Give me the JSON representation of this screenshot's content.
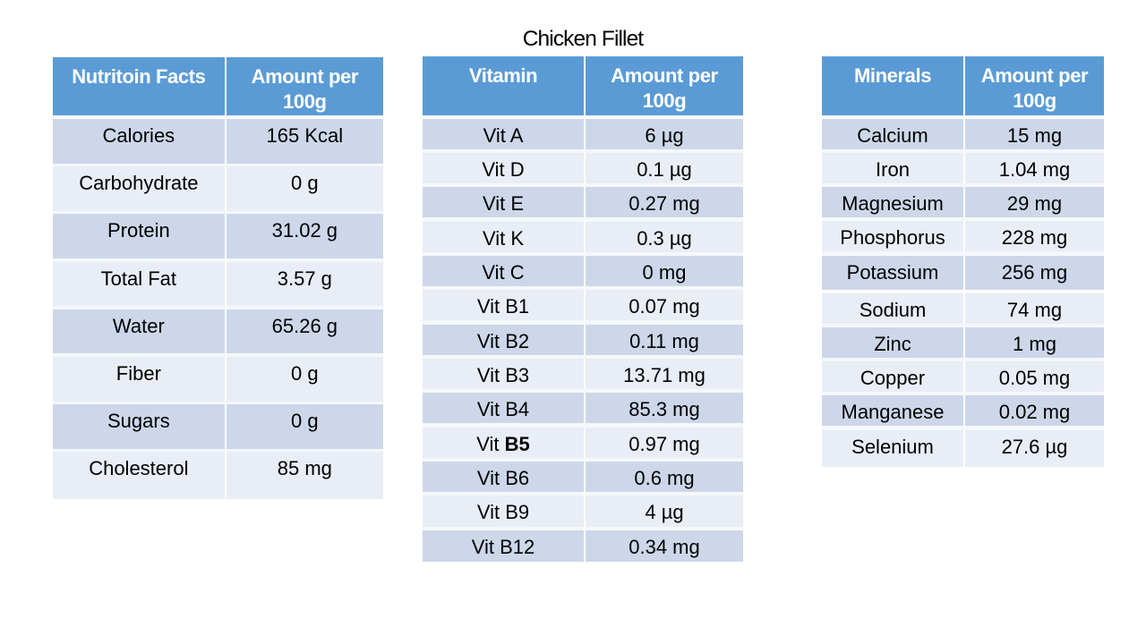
{
  "title": "Chicken Fillet",
  "colors": {
    "page_bg": "#ffffff",
    "header_bg": "#5b9bd5",
    "header_text": "#ffffff",
    "band_dark": "#cdd7e9",
    "band_light": "#e9edf6",
    "row_sep": "#f5f8fb",
    "group_sep": "#ffffff",
    "divider": "#ffffff",
    "text": "#000000"
  },
  "tables": [
    {
      "id": "nutrition-facts",
      "col1_header": "Nutritoin Facts",
      "col2_header": "Amount per 100g",
      "rows": [
        {
          "name": "Calories",
          "value": "165 Kcal"
        },
        {
          "name": "Carbohydrate",
          "value": "0 g"
        },
        {
          "name": "Protein",
          "value": "31.02 g"
        },
        {
          "name": "Total Fat",
          "value": "3.57 g"
        },
        {
          "name": "Water",
          "value": "65.26 g"
        },
        {
          "name": "Fiber",
          "value": "0 g"
        },
        {
          "name": "Sugars",
          "value": "0 g"
        },
        {
          "name": "Cholesterol",
          "value": "85 mg"
        }
      ]
    },
    {
      "id": "vitamins",
      "col1_header": "Vitamin",
      "col2_header": "Amount per 100g",
      "rows": [
        {
          "name": "Vit A",
          "value": "6 µg"
        },
        {
          "name": "Vit D",
          "value": "0.1 µg"
        },
        {
          "name": "Vit E",
          "value": "0.27 mg"
        },
        {
          "name": "Vit K",
          "value": "0.3 µg"
        },
        {
          "name": "Vit C",
          "value": "0 mg"
        },
        {
          "name": "Vit B1",
          "value": "0.07 mg"
        },
        {
          "name": "Vit B2",
          "value": "0.11 mg"
        },
        {
          "name": "Vit B3",
          "value": "13.71 mg"
        },
        {
          "name": "Vit B4",
          "value": "85.3 mg"
        },
        {
          "name": "Vit B5",
          "name_prefix": "Vit ",
          "name_bold": "B5",
          "value": "0.97 mg"
        },
        {
          "name": "Vit B6",
          "value": "0.6 mg"
        },
        {
          "name": "Vit B9",
          "value": "4 µg"
        },
        {
          "name": "Vit B12",
          "value": "0.34 mg"
        }
      ]
    },
    {
      "id": "minerals",
      "col1_header": "Minerals",
      "col2_header": "Amount per 100g",
      "rows": [
        {
          "name": "Calcium",
          "value": "15 mg"
        },
        {
          "name": "Iron",
          "value": "1.04 mg"
        },
        {
          "name": "Magnesium",
          "value": "29 mg"
        },
        {
          "name": "Phosphorus",
          "value": "228 mg"
        },
        {
          "name": "Potassium",
          "value": "256 mg"
        },
        {
          "name": "Sodium",
          "value": "74 mg",
          "gap_before": true
        },
        {
          "name": "Zinc",
          "value": "1 mg"
        },
        {
          "name": "Copper",
          "value": "0.05 mg"
        },
        {
          "name": "Manganese",
          "value": "0.02 mg"
        },
        {
          "name": "Selenium",
          "value": "27.6 µg"
        }
      ]
    }
  ]
}
